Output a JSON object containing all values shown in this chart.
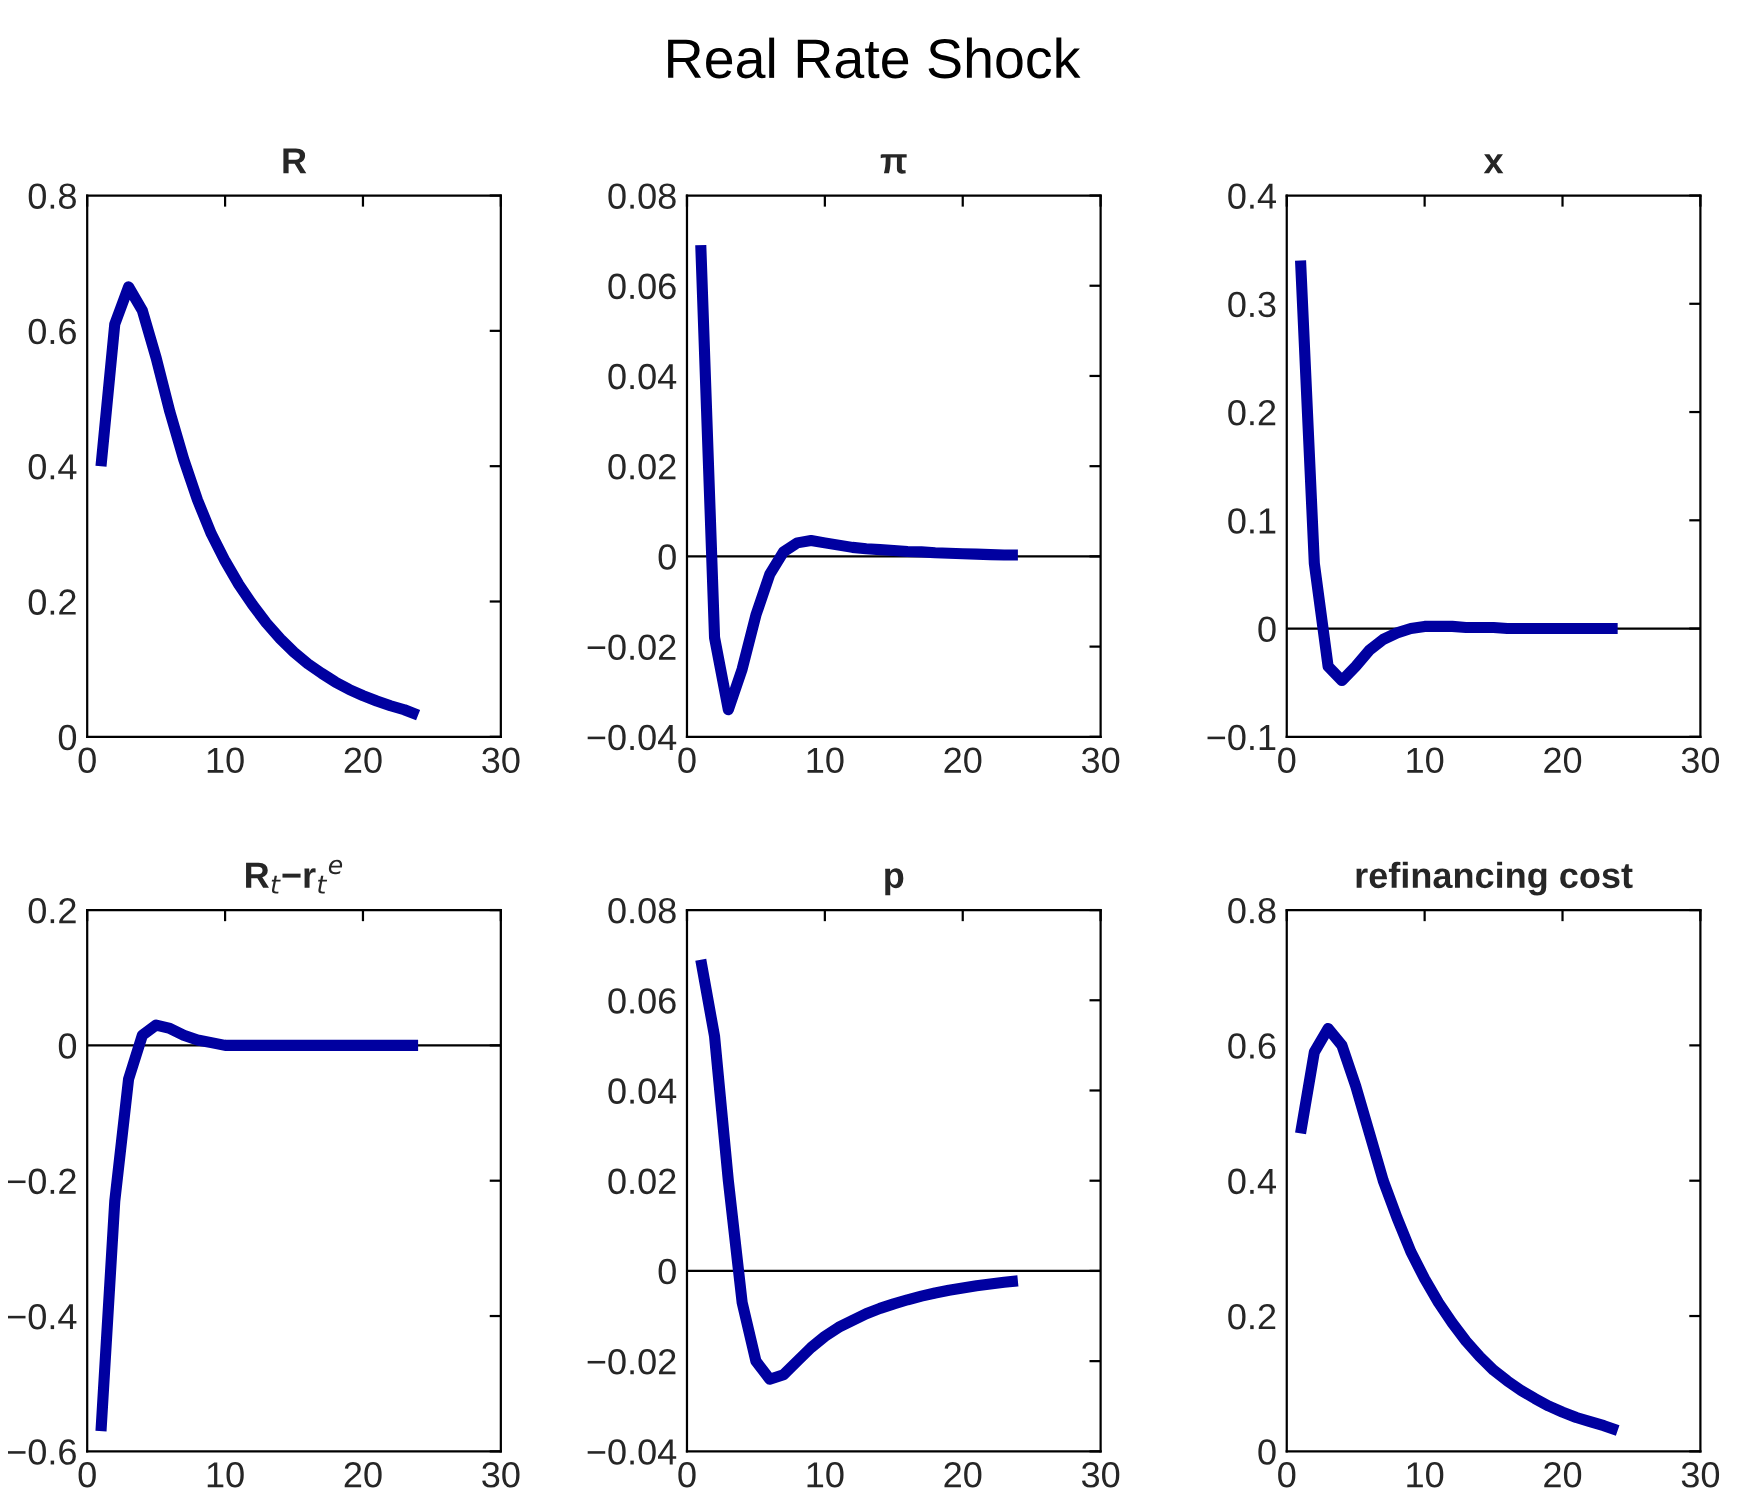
{
  "chart_data": [
    {
      "type": "line",
      "title": "R",
      "annotations": [
        "Real Rate Shock"
      ],
      "x": [
        1,
        2,
        3,
        4,
        5,
        6,
        7,
        8,
        9,
        10,
        11,
        12,
        13,
        14,
        15,
        16,
        17,
        18,
        19,
        20,
        21,
        22,
        23,
        24
      ],
      "series": [
        {
          "color": "#0000a0",
          "values": [
            0.4,
            0.61,
            0.665,
            0.63,
            0.56,
            0.48,
            0.41,
            0.35,
            0.3,
            0.26,
            0.225,
            0.195,
            0.168,
            0.145,
            0.125,
            0.108,
            0.094,
            0.081,
            0.07,
            0.061,
            0.053,
            0.046,
            0.04,
            0.032
          ]
        }
      ],
      "xlim": [
        0,
        30
      ],
      "xticks": [
        0,
        10,
        20,
        30
      ],
      "ylim": [
        0,
        0.8
      ],
      "yticks": [
        0,
        0.2,
        0.4,
        0.6,
        0.8
      ],
      "grid": false,
      "marker": "none",
      "line_style": "solid"
    },
    {
      "type": "line",
      "title": "π",
      "x": [
        1,
        2,
        3,
        4,
        5,
        6,
        7,
        8,
        9,
        10,
        11,
        12,
        13,
        14,
        15,
        16,
        17,
        18,
        19,
        20,
        21,
        22,
        23,
        24
      ],
      "series": [
        {
          "color": "#0000a0",
          "values": [
            0.069,
            -0.018,
            -0.034,
            -0.025,
            -0.013,
            -0.004,
            0.001,
            0.003,
            0.0035,
            0.003,
            0.0025,
            0.002,
            0.0017,
            0.0015,
            0.0013,
            0.0011,
            0.001,
            0.0008,
            0.0007,
            0.0006,
            0.0005,
            0.0004,
            0.0003,
            0.0003
          ]
        }
      ],
      "xlim": [
        0,
        30
      ],
      "xticks": [
        0,
        10,
        20,
        30
      ],
      "ylim": [
        -0.04,
        0.08
      ],
      "yticks": [
        -0.04,
        -0.02,
        0,
        0.02,
        0.04,
        0.06,
        0.08
      ],
      "grid": false,
      "marker": "none",
      "line_style": "solid",
      "ref_lines": [
        {
          "axis": "y",
          "value": 0,
          "color": "#000000"
        }
      ]
    },
    {
      "type": "line",
      "title": "x",
      "x": [
        1,
        2,
        3,
        4,
        5,
        6,
        7,
        8,
        9,
        10,
        11,
        12,
        13,
        14,
        15,
        16,
        17,
        18,
        19,
        20,
        21,
        22,
        23,
        24
      ],
      "series": [
        {
          "color": "#0000a0",
          "values": [
            0.34,
            0.06,
            -0.035,
            -0.048,
            -0.035,
            -0.02,
            -0.01,
            -0.004,
            0.0,
            0.002,
            0.002,
            0.002,
            0.001,
            0.001,
            0.001,
            0,
            0,
            0,
            0,
            0,
            0,
            0,
            0,
            0
          ]
        }
      ],
      "xlim": [
        0,
        30
      ],
      "xticks": [
        0,
        10,
        20,
        30
      ],
      "ylim": [
        -0.1,
        0.4
      ],
      "yticks": [
        -0.1,
        0,
        0.1,
        0.2,
        0.3,
        0.4
      ],
      "grid": false,
      "marker": "none",
      "line_style": "solid",
      "ref_lines": [
        {
          "axis": "y",
          "value": 0,
          "color": "#000000"
        }
      ]
    },
    {
      "type": "line",
      "title": "R$_{t}$−r$_{t}$$^{e}$",
      "x": [
        1,
        2,
        3,
        4,
        5,
        6,
        7,
        8,
        9,
        10,
        11,
        12,
        13,
        14,
        15,
        16,
        17,
        18,
        19,
        20,
        21,
        22,
        23,
        24
      ],
      "series": [
        {
          "color": "#0000a0",
          "values": [
            -0.57,
            -0.23,
            -0.05,
            0.015,
            0.03,
            0.025,
            0.015,
            0.008,
            0.004,
            0,
            0,
            0,
            0,
            0,
            0,
            0,
            0,
            0,
            0,
            0,
            0,
            0,
            0,
            0
          ]
        }
      ],
      "xlim": [
        0,
        30
      ],
      "xticks": [
        0,
        10,
        20,
        30
      ],
      "ylim": [
        -0.6,
        0.2
      ],
      "yticks": [
        -0.6,
        -0.4,
        -0.2,
        0,
        0.2
      ],
      "grid": false,
      "marker": "none",
      "line_style": "solid",
      "ref_lines": [
        {
          "axis": "y",
          "value": 0,
          "color": "#000000"
        }
      ]
    },
    {
      "type": "line",
      "title": "p",
      "x": [
        1,
        2,
        3,
        4,
        5,
        6,
        7,
        8,
        9,
        10,
        11,
        12,
        13,
        14,
        15,
        16,
        17,
        18,
        19,
        20,
        21,
        22,
        23,
        24
      ],
      "series": [
        {
          "color": "#0000a0",
          "values": [
            0.069,
            0.052,
            0.02,
            -0.007,
            -0.02,
            -0.024,
            -0.023,
            -0.02,
            -0.017,
            -0.0145,
            -0.0125,
            -0.011,
            -0.0095,
            -0.0083,
            -0.0073,
            -0.0064,
            -0.0056,
            -0.0049,
            -0.0043,
            -0.0038,
            -0.0033,
            -0.0029,
            -0.0025,
            -0.0022
          ]
        }
      ],
      "xlim": [
        0,
        30
      ],
      "xticks": [
        0,
        10,
        20,
        30
      ],
      "ylim": [
        -0.04,
        0.08
      ],
      "yticks": [
        -0.04,
        -0.02,
        0,
        0.02,
        0.04,
        0.06,
        0.08
      ],
      "grid": false,
      "marker": "none",
      "line_style": "solid",
      "ref_lines": [
        {
          "axis": "y",
          "value": 0,
          "color": "#000000"
        }
      ]
    },
    {
      "type": "line",
      "title": "refinancing cost",
      "x": [
        1,
        2,
        3,
        4,
        5,
        6,
        7,
        8,
        9,
        10,
        11,
        12,
        13,
        14,
        15,
        16,
        17,
        18,
        19,
        20,
        21,
        22,
        23,
        24
      ],
      "series": [
        {
          "color": "#0000a0",
          "values": [
            0.47,
            0.59,
            0.625,
            0.6,
            0.54,
            0.47,
            0.4,
            0.345,
            0.295,
            0.255,
            0.22,
            0.19,
            0.163,
            0.14,
            0.12,
            0.104,
            0.09,
            0.078,
            0.067,
            0.058,
            0.05,
            0.044,
            0.038,
            0.031
          ]
        }
      ],
      "xlim": [
        0,
        30
      ],
      "xticks": [
        0,
        10,
        20,
        30
      ],
      "ylim": [
        0,
        0.8
      ],
      "yticks": [
        0,
        0.2,
        0.4,
        0.6,
        0.8
      ],
      "grid": false,
      "marker": "none",
      "line_style": "solid"
    }
  ]
}
